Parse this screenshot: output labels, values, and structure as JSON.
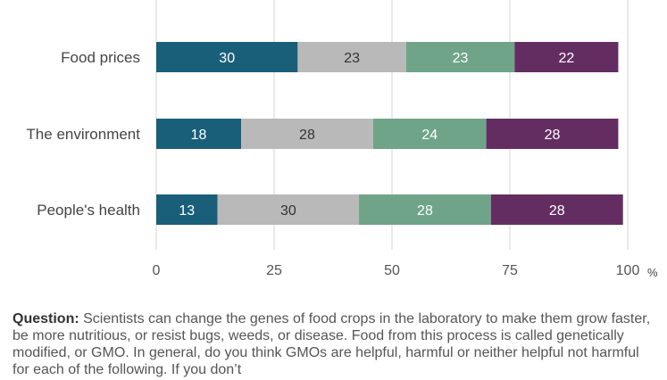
{
  "chart_data": {
    "type": "bar",
    "orientation": "horizontal",
    "stacked": true,
    "categories": [
      "Food prices",
      "The environment",
      "People's health"
    ],
    "series": [
      {
        "values": [
          30,
          18,
          13
        ],
        "color": "#1a5f7a",
        "label_color": "#ffffff"
      },
      {
        "values": [
          23,
          28,
          30
        ],
        "color": "#b9b9b9",
        "label_color": "#333333"
      },
      {
        "values": [
          23,
          24,
          28
        ],
        "color": "#6fa488",
        "label_color": "#ffffff"
      },
      {
        "values": [
          22,
          28,
          28
        ],
        "color": "#642d62",
        "label_color": "#ffffff"
      }
    ],
    "xlim": [
      0,
      100
    ],
    "xticks": [
      "0",
      "25",
      "50",
      "75",
      "100"
    ],
    "x_unit": "%",
    "grid": "vertical"
  },
  "question": {
    "label": "Question:",
    "text": "Scientists can change the genes of food crops in the laboratory to make them grow faster, be more nutritious, or resist bugs, weeds, or disease. Food from this process is called genetically modified, or GMO.  In general, do you think GMOs are helpful, harmful or neither helpful not harmful for each of the following. If you don’t"
  }
}
